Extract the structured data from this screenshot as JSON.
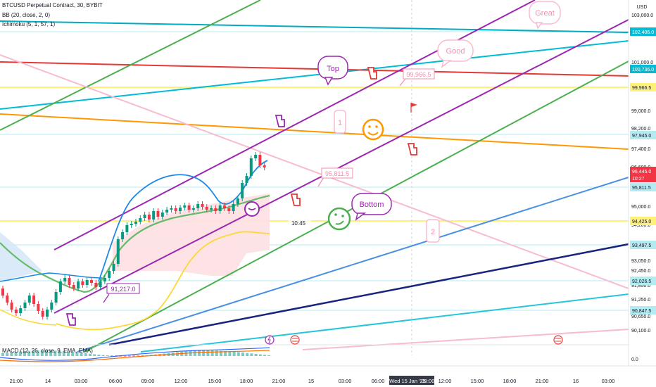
{
  "header": {
    "symbol_line": "BTCUSD Perpetual Contract, 30, BYBIT",
    "bb_line": "BB (20, close, 2, 0)",
    "ichimoku_line": "Ichimoku (5, 1, 57, 1)",
    "currency": "USD"
  },
  "price_axis": {
    "ticks": [
      "103,000.0",
      "102,000.0",
      "101,000.0",
      "99,000.0",
      "98,200.0",
      "97,400.0",
      "96,600.0",
      "95,000.0",
      "94,200.0",
      "93,050.0",
      "92,450.0",
      "91,850.0",
      "91,250.0",
      "90,650.0",
      "90,100.0",
      "0.0"
    ],
    "highlighted": [
      {
        "label": "102,406.0",
        "color": "#00bcd4",
        "text": "#ffffff"
      },
      {
        "label": "100,736.0",
        "color": "#00bcd4",
        "text": "#ffffff"
      },
      {
        "label": "99,966.5",
        "color": "#fff176",
        "text": "#131722"
      },
      {
        "label": "97,945.0",
        "color": "#b2ebf2",
        "text": "#131722"
      },
      {
        "label": "96,445.0",
        "color": "#f23645",
        "text": "#ffffff"
      },
      {
        "label": "10:27",
        "color": "#f23645",
        "text": "#ffffff"
      },
      {
        "label": "95,811.5",
        "color": "#b2ebf2",
        "text": "#131722"
      },
      {
        "label": "94,425.0",
        "color": "#fff176",
        "text": "#131722"
      },
      {
        "label": "93,497.5",
        "color": "#b2ebf2",
        "text": "#131722"
      },
      {
        "label": "92,026.5",
        "color": "#b2ebf2",
        "text": "#131722"
      },
      {
        "label": "90,847.5",
        "color": "#b2ebf2",
        "text": "#131722"
      }
    ]
  },
  "time_axis": {
    "ticks": [
      "21:00",
      "14",
      "03:00",
      "06:00",
      "09:00",
      "12:00",
      "15:00",
      "18:00",
      "21:00",
      "15",
      "03:00",
      "06:00",
      "12:00",
      "15:00",
      "18:00",
      "21:00",
      "16",
      "03:00"
    ],
    "crosshair_label": "Wed 15 Jan '25",
    "crosshair_time": "09:00"
  },
  "annotations": {
    "great": "Great",
    "good": "Good",
    "top": "Top",
    "bottom": "Bottom",
    "one": "1",
    "two": "2",
    "price_high": "99,966.5",
    "price_mid": "95,811.5",
    "price_low": "91,217.0",
    "time_label": "10:45"
  },
  "macd": {
    "label": "MACD (12, 26, close, 9, EMA, EMA)"
  },
  "colors": {
    "up": "#089981",
    "down": "#f23645",
    "purple": "#9c27b0",
    "green": "#4caf50",
    "cyan": "#00bcd4",
    "red": "#e53935",
    "orange": "#ff9800",
    "pink": "#f8bbd0",
    "blue": "#4a90e2",
    "navy": "#1a237e",
    "yellow": "#fff176"
  }
}
